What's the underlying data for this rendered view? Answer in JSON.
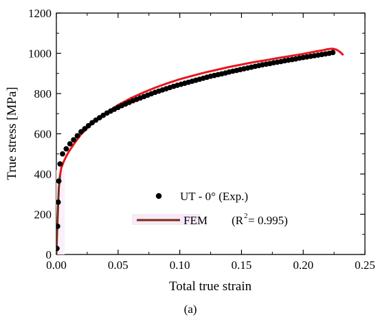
{
  "chart_data": {
    "type": "line",
    "title": "",
    "xlabel": "Total true strain",
    "ylabel": "True stress [MPa]",
    "xlim": [
      0.0,
      0.25
    ],
    "ylim": [
      0,
      1200
    ],
    "xticks": [
      0.0,
      0.05,
      0.1,
      0.15,
      0.2,
      0.25
    ],
    "xtick_labels": [
      "0.00",
      "0.05",
      "0.10",
      "0.15",
      "0.20",
      "0.25"
    ],
    "yticks": [
      0,
      200,
      400,
      600,
      800,
      1000,
      1200
    ],
    "ytick_labels": [
      "0",
      "200",
      "400",
      "600",
      "800",
      "1000",
      "1200"
    ],
    "grid": false,
    "legend_position": "lower-center",
    "caption": "(a)",
    "series": [
      {
        "name": "UT - 0° (Exp.)",
        "legend_label": "UT - 0° (Exp.)",
        "kind": "scatter",
        "marker": "circle",
        "color": "#000000",
        "x": [
          0.0005,
          0.001,
          0.0015,
          0.002,
          0.003,
          0.005,
          0.008,
          0.011,
          0.014,
          0.017,
          0.02,
          0.023,
          0.026,
          0.029,
          0.032,
          0.035,
          0.038,
          0.041,
          0.044,
          0.047,
          0.05,
          0.053,
          0.056,
          0.059,
          0.062,
          0.065,
          0.068,
          0.071,
          0.074,
          0.077,
          0.08,
          0.083,
          0.086,
          0.089,
          0.092,
          0.095,
          0.098,
          0.101,
          0.104,
          0.107,
          0.11,
          0.113,
          0.116,
          0.119,
          0.122,
          0.125,
          0.128,
          0.131,
          0.134,
          0.137,
          0.14,
          0.143,
          0.146,
          0.149,
          0.152,
          0.155,
          0.158,
          0.161,
          0.164,
          0.167,
          0.17,
          0.173,
          0.176,
          0.179,
          0.182,
          0.185,
          0.188,
          0.191,
          0.194,
          0.197,
          0.2,
          0.203,
          0.206,
          0.209,
          0.212,
          0.215,
          0.218,
          0.221,
          0.224
        ],
        "y": [
          30,
          140,
          260,
          365,
          450,
          500,
          525,
          550,
          570,
          590,
          610,
          625,
          640,
          655,
          668,
          680,
          692,
          703,
          713,
          722,
          731,
          740,
          748,
          756,
          764,
          771,
          778,
          785,
          792,
          799,
          806,
          812,
          818,
          824,
          830,
          836,
          841,
          846,
          851,
          856,
          861,
          866,
          871,
          876,
          881,
          886,
          890,
          894,
          898,
          902,
          907,
          911,
          915,
          919,
          923,
          927,
          931,
          935,
          939,
          943,
          946,
          949,
          953,
          956,
          959,
          963,
          966,
          969,
          972,
          976,
          979,
          982,
          985,
          988,
          991,
          994,
          997,
          1000,
          1004
        ]
      },
      {
        "name": "FEM",
        "legend_label": "FEM",
        "legend_annotation": "(R",
        "legend_annotation_sup": "2",
        "legend_annotation_tail": " = 0.995)",
        "kind": "line",
        "color": "#e8151b",
        "legend_color": "#7a2a12",
        "x": [
          0.0,
          0.001,
          0.002,
          0.003,
          0.004,
          0.006,
          0.008,
          0.01,
          0.015,
          0.02,
          0.025,
          0.03,
          0.04,
          0.05,
          0.06,
          0.07,
          0.08,
          0.09,
          0.1,
          0.11,
          0.12,
          0.13,
          0.14,
          0.15,
          0.16,
          0.17,
          0.18,
          0.19,
          0.2,
          0.21,
          0.215,
          0.22,
          0.224,
          0.227,
          0.23,
          0.232
        ],
        "y": [
          0,
          180,
          330,
          395,
          430,
          462,
          488,
          510,
          556,
          597,
          628,
          656,
          703,
          743,
          776,
          804,
          829,
          851,
          871,
          888,
          904,
          918,
          932,
          944,
          956,
          966,
          977,
          987,
          997,
          1009,
          1014,
          1021,
          1023,
          1018,
          1006,
          994
        ]
      }
    ]
  }
}
